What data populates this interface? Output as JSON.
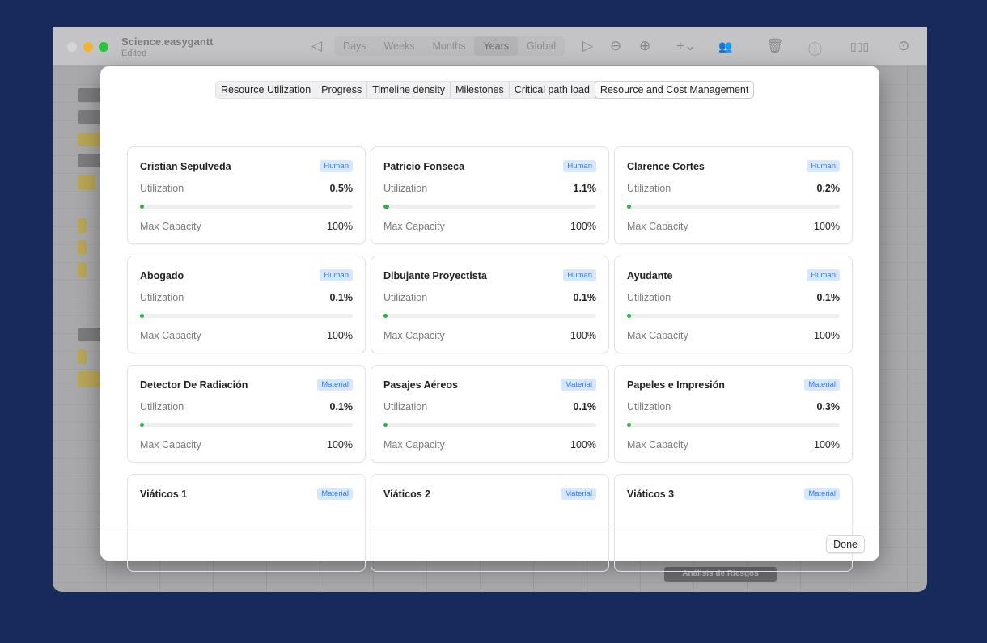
{
  "window": {
    "title": "Science.easygantt",
    "subtitle": "Edited"
  },
  "toolbar": {
    "scales": [
      "Days",
      "Weeks",
      "Months",
      "Years",
      "Global"
    ],
    "selected_scale": "Years",
    "icons": [
      "prev-icon",
      "next-icon",
      "zoom-out-icon",
      "zoom-in-icon",
      "add-icon",
      "resources-icon",
      "trash-icon",
      "info-icon",
      "chart-icon",
      "settings-icon"
    ]
  },
  "background": {
    "task_label": "Análisis de Riesgos"
  },
  "modal": {
    "tabs": [
      "Resource Utilization",
      "Progress",
      "Timeline density",
      "Milestones",
      "Critical path load",
      "Resource and Cost Management"
    ],
    "selected_tab": "Resource and Cost Management",
    "utilization_label": "Utilization",
    "capacity_label": "Max Capacity",
    "resources": [
      {
        "name": "Cristian Sepulveda",
        "type": "Human",
        "utilization": "0.5%",
        "utilization_value": 0.5,
        "capacity": "100%"
      },
      {
        "name": "Patricio Fonseca",
        "type": "Human",
        "utilization": "1.1%",
        "utilization_value": 1.1,
        "capacity": "100%"
      },
      {
        "name": "Clarence Cortes",
        "type": "Human",
        "utilization": "0.2%",
        "utilization_value": 0.2,
        "capacity": "100%"
      },
      {
        "name": "Abogado",
        "type": "Human",
        "utilization": "0.1%",
        "utilization_value": 0.1,
        "capacity": "100%"
      },
      {
        "name": "Dibujante Proyectista",
        "type": "Human",
        "utilization": "0.1%",
        "utilization_value": 0.1,
        "capacity": "100%"
      },
      {
        "name": "Ayudante",
        "type": "Human",
        "utilization": "0.1%",
        "utilization_value": 0.1,
        "capacity": "100%"
      },
      {
        "name": "Detector De Radiación",
        "type": "Material",
        "utilization": "0.1%",
        "utilization_value": 0.1,
        "capacity": "100%"
      },
      {
        "name": "Pasajes Aéreos",
        "type": "Material",
        "utilization": "0.1%",
        "utilization_value": 0.1,
        "capacity": "100%"
      },
      {
        "name": "Papeles e Impresión",
        "type": "Material",
        "utilization": "0.3%",
        "utilization_value": 0.3,
        "capacity": "100%"
      },
      {
        "name": "Viáticos 1",
        "type": "Material"
      },
      {
        "name": "Viáticos 2",
        "type": "Material"
      },
      {
        "name": "Viáticos 3",
        "type": "Material"
      }
    ],
    "done_label": "Done"
  },
  "colors": {
    "accent": "#2d7cf6",
    "progress": "#27b443",
    "badge_bg": "#d7e7fd"
  }
}
